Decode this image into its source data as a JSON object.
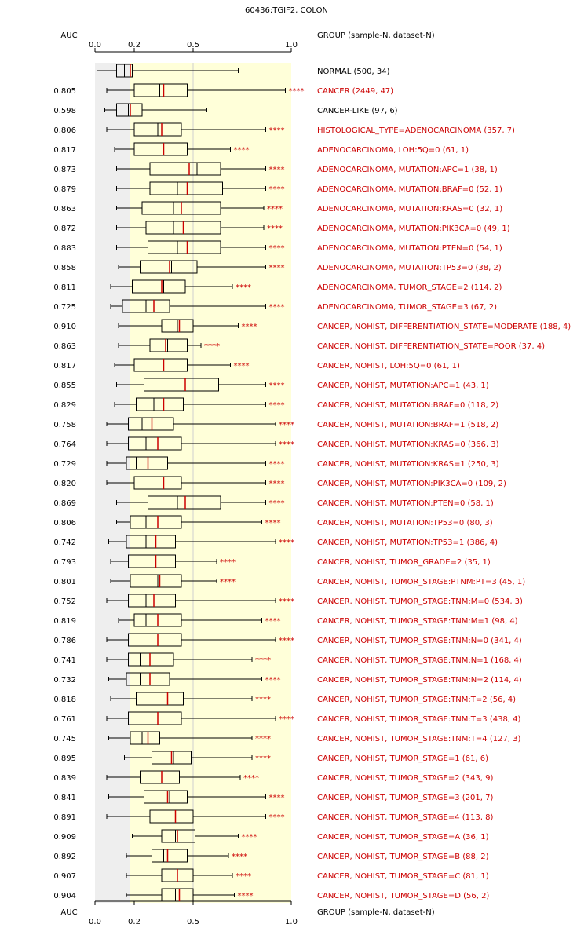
{
  "chart_data": {
    "type": "boxplot",
    "title": "60436:TGIF2, COLON",
    "auc_header": "AUC",
    "group_header": "GROUP (sample-N, dataset-N)",
    "x_ticks": [
      {
        "value": 0.0,
        "label": "0.0"
      },
      {
        "value": 0.2,
        "label": "0.2"
      },
      {
        "value": 0.5,
        "label": "0.5"
      },
      {
        "value": 1.0,
        "label": "1.0"
      }
    ],
    "xlim": [
      0,
      1.0
    ],
    "shaded_region_gray": [
      0,
      0.18
    ],
    "shaded_region_yellow": [
      0.18,
      1.0
    ],
    "reference_line": 0.5,
    "colors": {
      "normal": "#000000",
      "significant": "#cc0000",
      "gray_band": "#eeeeee",
      "yellow_band": "#ffffd9",
      "median": "#cc0000",
      "mean": "#000000"
    },
    "groups": [
      {
        "label": "NORMAL (500, 34)",
        "auc": "",
        "sig": "",
        "red": false,
        "whisker_lo": 0.01,
        "q1": 0.11,
        "mean": 0.15,
        "median": 0.18,
        "q3": 0.19,
        "whisker_hi": 0.73
      },
      {
        "label": "CANCER (2449, 47)",
        "auc": "0.805",
        "sig": "****",
        "red": true,
        "whisker_lo": 0.06,
        "q1": 0.2,
        "mean": 0.33,
        "median": 0.35,
        "q3": 0.47,
        "whisker_hi": 0.97
      },
      {
        "label": "CANCER-LIKE (97, 6)",
        "auc": "0.598",
        "sig": "",
        "red": false,
        "whisker_lo": 0.05,
        "q1": 0.11,
        "mean": 0.17,
        "median": 0.18,
        "q3": 0.24,
        "whisker_hi": 0.57
      },
      {
        "label": "HISTOLOGICAL_TYPE=ADENOCARCINOMA (357, 7)",
        "auc": "0.806",
        "sig": "****",
        "red": true,
        "whisker_lo": 0.06,
        "q1": 0.2,
        "mean": 0.32,
        "median": 0.34,
        "q3": 0.44,
        "whisker_hi": 0.87
      },
      {
        "label": "ADENOCARCINOMA, LOH:5Q=0 (61, 1)",
        "auc": "0.817",
        "sig": "****",
        "red": true,
        "whisker_lo": 0.1,
        "q1": 0.2,
        "mean": 0.35,
        "median": 0.35,
        "q3": 0.47,
        "whisker_hi": 0.69
      },
      {
        "label": "ADENOCARCINOMA, MUTATION:APC=1 (38, 1)",
        "auc": "0.873",
        "sig": "****",
        "red": true,
        "whisker_lo": 0.11,
        "q1": 0.28,
        "mean": 0.52,
        "median": 0.48,
        "q3": 0.64,
        "whisker_hi": 0.87
      },
      {
        "label": "ADENOCARCINOMA, MUTATION:BRAF=0 (52, 1)",
        "auc": "0.879",
        "sig": "****",
        "red": true,
        "whisker_lo": 0.11,
        "q1": 0.28,
        "mean": 0.42,
        "median": 0.47,
        "q3": 0.65,
        "whisker_hi": 0.87
      },
      {
        "label": "ADENOCARCINOMA, MUTATION:KRAS=0 (32, 1)",
        "auc": "0.863",
        "sig": "****",
        "red": true,
        "whisker_lo": 0.11,
        "q1": 0.24,
        "mean": 0.4,
        "median": 0.44,
        "q3": 0.64,
        "whisker_hi": 0.86
      },
      {
        "label": "ADENOCARCINOMA, MUTATION:PIK3CA=0 (49, 1)",
        "auc": "0.872",
        "sig": "****",
        "red": true,
        "whisker_lo": 0.11,
        "q1": 0.26,
        "mean": 0.4,
        "median": 0.45,
        "q3": 0.64,
        "whisker_hi": 0.86
      },
      {
        "label": "ADENOCARCINOMA, MUTATION:PTEN=0 (54, 1)",
        "auc": "0.883",
        "sig": "****",
        "red": true,
        "whisker_lo": 0.11,
        "q1": 0.27,
        "mean": 0.42,
        "median": 0.47,
        "q3": 0.64,
        "whisker_hi": 0.87
      },
      {
        "label": "ADENOCARCINOMA, MUTATION:TP53=0 (38, 2)",
        "auc": "0.858",
        "sig": "****",
        "red": true,
        "whisker_lo": 0.12,
        "q1": 0.23,
        "mean": 0.39,
        "median": 0.38,
        "q3": 0.52,
        "whisker_hi": 0.87
      },
      {
        "label": "ADENOCARCINOMA, TUMOR_STAGE=2 (114, 2)",
        "auc": "0.811",
        "sig": "****",
        "red": true,
        "whisker_lo": 0.08,
        "q1": 0.19,
        "mean": 0.35,
        "median": 0.34,
        "q3": 0.46,
        "whisker_hi": 0.7
      },
      {
        "label": "ADENOCARCINOMA, TUMOR_STAGE=3 (67, 2)",
        "auc": "0.725",
        "sig": "****",
        "red": true,
        "whisker_lo": 0.08,
        "q1": 0.14,
        "mean": 0.26,
        "median": 0.3,
        "q3": 0.38,
        "whisker_hi": 0.87
      },
      {
        "label": "CANCER, NOHIST, DIFFERENTIATION_STATE=MODERATE (188, 4)",
        "auc": "0.910",
        "sig": "****",
        "red": true,
        "whisker_lo": 0.12,
        "q1": 0.34,
        "mean": 0.42,
        "median": 0.43,
        "q3": 0.5,
        "whisker_hi": 0.73
      },
      {
        "label": "CANCER, NOHIST, DIFFERENTIATION_STATE=POOR (37, 4)",
        "auc": "0.863",
        "sig": "****",
        "red": true,
        "whisker_lo": 0.12,
        "q1": 0.28,
        "mean": 0.37,
        "median": 0.36,
        "q3": 0.47,
        "whisker_hi": 0.54
      },
      {
        "label": "CANCER, NOHIST, LOH:5Q=0 (61, 1)",
        "auc": "0.817",
        "sig": "****",
        "red": true,
        "whisker_lo": 0.1,
        "q1": 0.2,
        "mean": 0.35,
        "median": 0.35,
        "q3": 0.47,
        "whisker_hi": 0.69
      },
      {
        "label": "CANCER, NOHIST, MUTATION:APC=1 (43, 1)",
        "auc": "0.855",
        "sig": "****",
        "red": true,
        "whisker_lo": 0.11,
        "q1": 0.25,
        "mean": 0.46,
        "median": 0.46,
        "q3": 0.63,
        "whisker_hi": 0.87
      },
      {
        "label": "CANCER, NOHIST, MUTATION:BRAF=0 (118, 2)",
        "auc": "0.829",
        "sig": "****",
        "red": true,
        "whisker_lo": 0.1,
        "q1": 0.21,
        "mean": 0.3,
        "median": 0.35,
        "q3": 0.45,
        "whisker_hi": 0.87
      },
      {
        "label": "CANCER, NOHIST, MUTATION:BRAF=1 (518, 2)",
        "auc": "0.758",
        "sig": "****",
        "red": true,
        "whisker_lo": 0.06,
        "q1": 0.17,
        "mean": 0.24,
        "median": 0.29,
        "q3": 0.4,
        "whisker_hi": 0.92
      },
      {
        "label": "CANCER, NOHIST, MUTATION:KRAS=0 (366, 3)",
        "auc": "0.764",
        "sig": "****",
        "red": true,
        "whisker_lo": 0.06,
        "q1": 0.17,
        "mean": 0.26,
        "median": 0.32,
        "q3": 0.44,
        "whisker_hi": 0.92
      },
      {
        "label": "CANCER, NOHIST, MUTATION:KRAS=1 (250, 3)",
        "auc": "0.729",
        "sig": "****",
        "red": true,
        "whisker_lo": 0.06,
        "q1": 0.16,
        "mean": 0.21,
        "median": 0.27,
        "q3": 0.37,
        "whisker_hi": 0.87
      },
      {
        "label": "CANCER, NOHIST, MUTATION:PIK3CA=0 (109, 2)",
        "auc": "0.820",
        "sig": "****",
        "red": true,
        "whisker_lo": 0.06,
        "q1": 0.2,
        "mean": 0.29,
        "median": 0.35,
        "q3": 0.44,
        "whisker_hi": 0.87
      },
      {
        "label": "CANCER, NOHIST, MUTATION:PTEN=0 (58, 1)",
        "auc": "0.869",
        "sig": "****",
        "red": true,
        "whisker_lo": 0.11,
        "q1": 0.27,
        "mean": 0.42,
        "median": 0.46,
        "q3": 0.64,
        "whisker_hi": 0.87
      },
      {
        "label": "CANCER, NOHIST, MUTATION:TP53=0 (80, 3)",
        "auc": "0.806",
        "sig": "****",
        "red": true,
        "whisker_lo": 0.11,
        "q1": 0.18,
        "mean": 0.26,
        "median": 0.32,
        "q3": 0.44,
        "whisker_hi": 0.85
      },
      {
        "label": "CANCER, NOHIST, MUTATION:TP53=1 (386, 4)",
        "auc": "0.742",
        "sig": "****",
        "red": true,
        "whisker_lo": 0.07,
        "q1": 0.16,
        "mean": 0.26,
        "median": 0.31,
        "q3": 0.41,
        "whisker_hi": 0.92
      },
      {
        "label": "CANCER, NOHIST, TUMOR_GRADE=2 (35, 1)",
        "auc": "0.793",
        "sig": "****",
        "red": true,
        "whisker_lo": 0.08,
        "q1": 0.17,
        "mean": 0.27,
        "median": 0.31,
        "q3": 0.41,
        "whisker_hi": 0.62
      },
      {
        "label": "CANCER, NOHIST, TUMOR_STAGE:PTNM:PT=3 (45, 1)",
        "auc": "0.801",
        "sig": "****",
        "red": true,
        "whisker_lo": 0.08,
        "q1": 0.18,
        "mean": 0.32,
        "median": 0.33,
        "q3": 0.44,
        "whisker_hi": 0.62
      },
      {
        "label": "CANCER, NOHIST, TUMOR_STAGE:TNM:M=0 (534, 3)",
        "auc": "0.752",
        "sig": "****",
        "red": true,
        "whisker_lo": 0.06,
        "q1": 0.17,
        "mean": 0.26,
        "median": 0.3,
        "q3": 0.41,
        "whisker_hi": 0.92
      },
      {
        "label": "CANCER, NOHIST, TUMOR_STAGE:TNM:M=1 (98, 4)",
        "auc": "0.819",
        "sig": "****",
        "red": true,
        "whisker_lo": 0.12,
        "q1": 0.2,
        "mean": 0.26,
        "median": 0.32,
        "q3": 0.44,
        "whisker_hi": 0.85
      },
      {
        "label": "CANCER, NOHIST, TUMOR_STAGE:TNM:N=0 (341, 4)",
        "auc": "0.786",
        "sig": "****",
        "red": true,
        "whisker_lo": 0.06,
        "q1": 0.17,
        "mean": 0.29,
        "median": 0.32,
        "q3": 0.44,
        "whisker_hi": 0.92
      },
      {
        "label": "CANCER, NOHIST, TUMOR_STAGE:TNM:N=1 (168, 4)",
        "auc": "0.741",
        "sig": "****",
        "red": true,
        "whisker_lo": 0.06,
        "q1": 0.17,
        "mean": 0.23,
        "median": 0.28,
        "q3": 0.4,
        "whisker_hi": 0.8
      },
      {
        "label": "CANCER, NOHIST, TUMOR_STAGE:TNM:N=2 (114, 4)",
        "auc": "0.732",
        "sig": "****",
        "red": true,
        "whisker_lo": 0.07,
        "q1": 0.16,
        "mean": 0.23,
        "median": 0.28,
        "q3": 0.38,
        "whisker_hi": 0.85
      },
      {
        "label": "CANCER, NOHIST, TUMOR_STAGE:TNM:T=2 (56, 4)",
        "auc": "0.818",
        "sig": "****",
        "red": true,
        "whisker_lo": 0.08,
        "q1": 0.21,
        "mean": 0.37,
        "median": 0.37,
        "q3": 0.45,
        "whisker_hi": 0.8
      },
      {
        "label": "CANCER, NOHIST, TUMOR_STAGE:TNM:T=3 (438, 4)",
        "auc": "0.761",
        "sig": "****",
        "red": true,
        "whisker_lo": 0.06,
        "q1": 0.17,
        "mean": 0.27,
        "median": 0.32,
        "q3": 0.44,
        "whisker_hi": 0.92
      },
      {
        "label": "CANCER, NOHIST, TUMOR_STAGE:TNM:T=4 (127, 3)",
        "auc": "0.745",
        "sig": "****",
        "red": true,
        "whisker_lo": 0.07,
        "q1": 0.18,
        "mean": 0.24,
        "median": 0.27,
        "q3": 0.33,
        "whisker_hi": 0.8
      },
      {
        "label": "CANCER, NOHIST, TUMOR_STAGE=1 (61, 6)",
        "auc": "0.895",
        "sig": "****",
        "red": true,
        "whisker_lo": 0.15,
        "q1": 0.29,
        "mean": 0.4,
        "median": 0.39,
        "q3": 0.49,
        "whisker_hi": 0.8
      },
      {
        "label": "CANCER, NOHIST, TUMOR_STAGE=2 (343, 9)",
        "auc": "0.839",
        "sig": "****",
        "red": true,
        "whisker_lo": 0.06,
        "q1": 0.23,
        "mean": 0.34,
        "median": 0.34,
        "q3": 0.43,
        "whisker_hi": 0.74
      },
      {
        "label": "CANCER, NOHIST, TUMOR_STAGE=3 (201, 7)",
        "auc": "0.841",
        "sig": "****",
        "red": true,
        "whisker_lo": 0.07,
        "q1": 0.25,
        "mean": 0.38,
        "median": 0.37,
        "q3": 0.47,
        "whisker_hi": 0.87
      },
      {
        "label": "CANCER, NOHIST, TUMOR_STAGE=4 (113, 8)",
        "auc": "0.891",
        "sig": "****",
        "red": true,
        "whisker_lo": 0.06,
        "q1": 0.28,
        "mean": 0.41,
        "median": 0.41,
        "q3": 0.5,
        "whisker_hi": 0.87
      },
      {
        "label": "CANCER, NOHIST, TUMOR_STAGE=A (36, 1)",
        "auc": "0.909",
        "sig": "****",
        "red": true,
        "whisker_lo": 0.19,
        "q1": 0.34,
        "mean": 0.41,
        "median": 0.42,
        "q3": 0.51,
        "whisker_hi": 0.73
      },
      {
        "label": "CANCER, NOHIST, TUMOR_STAGE=B (88, 2)",
        "auc": "0.892",
        "sig": "****",
        "red": true,
        "whisker_lo": 0.16,
        "q1": 0.29,
        "mean": 0.35,
        "median": 0.37,
        "q3": 0.47,
        "whisker_hi": 0.68
      },
      {
        "label": "CANCER, NOHIST, TUMOR_STAGE=C (81, 1)",
        "auc": "0.907",
        "sig": "****",
        "red": true,
        "whisker_lo": 0.16,
        "q1": 0.34,
        "mean": 0.42,
        "median": 0.42,
        "q3": 0.5,
        "whisker_hi": 0.7
      },
      {
        "label": "CANCER, NOHIST, TUMOR_STAGE=D (56, 2)",
        "auc": "0.904",
        "sig": "****",
        "red": true,
        "whisker_lo": 0.16,
        "q1": 0.34,
        "mean": 0.41,
        "median": 0.43,
        "q3": 0.5,
        "whisker_hi": 0.71
      }
    ]
  }
}
